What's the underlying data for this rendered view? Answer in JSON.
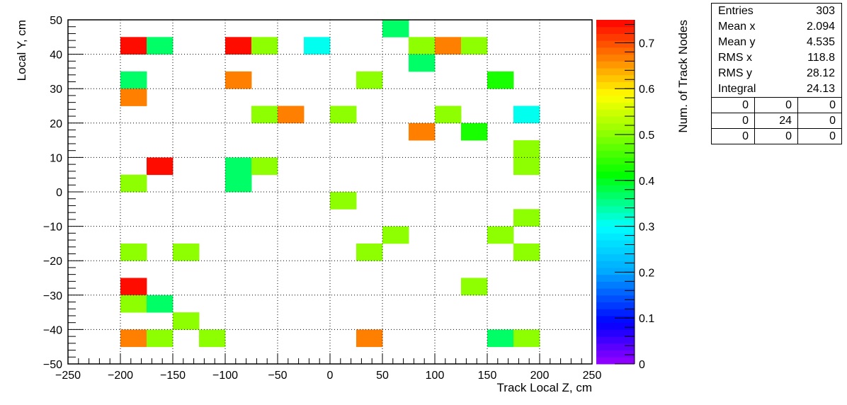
{
  "chart_data": {
    "type": "heatmap",
    "xlabel": "Track Local Z, cm",
    "ylabel": "Local Y, cm",
    "zlabel": "Num. of Track Nodes",
    "xlim": [
      -250,
      250
    ],
    "ylim": [
      -50,
      50
    ],
    "zlim": [
      0,
      0.75
    ],
    "x_bin_width": 25,
    "y_bin_width": 5,
    "x_ticks": [
      -250,
      -200,
      -150,
      -100,
      -50,
      0,
      50,
      100,
      150,
      200,
      250
    ],
    "x_tick_labels": [
      "−250",
      "−200",
      "−150",
      "−100",
      "−50",
      "0",
      "50",
      "100",
      "150",
      "200",
      "250"
    ],
    "y_ticks": [
      -50,
      -40,
      -30,
      -20,
      -10,
      0,
      10,
      20,
      30,
      40,
      50
    ],
    "y_tick_labels": [
      "−50",
      "−40",
      "−30",
      "−20",
      "−10",
      "0",
      "10",
      "20",
      "30",
      "40",
      "50"
    ],
    "z_ticks": [
      0,
      0.1,
      0.2,
      0.3,
      0.4,
      0.5,
      0.6,
      0.7
    ],
    "z_tick_labels": [
      "0",
      "0.1",
      "0.2",
      "0.3",
      "0.4",
      "0.5",
      "0.6",
      "0.7"
    ],
    "grid": true,
    "cells": [
      {
        "x": 50,
        "y": 45,
        "z": 0.36
      },
      {
        "x": -200,
        "y": 40,
        "z": 0.75
      },
      {
        "x": -175,
        "y": 40,
        "z": 0.36
      },
      {
        "x": -100,
        "y": 40,
        "z": 0.75
      },
      {
        "x": -75,
        "y": 40,
        "z": 0.5
      },
      {
        "x": -25,
        "y": 40,
        "z": 0.3
      },
      {
        "x": 75,
        "y": 40,
        "z": 0.5
      },
      {
        "x": 100,
        "y": 40,
        "z": 0.67
      },
      {
        "x": 125,
        "y": 40,
        "z": 0.5
      },
      {
        "x": 75,
        "y": 35,
        "z": 0.36
      },
      {
        "x": -200,
        "y": 30,
        "z": 0.36
      },
      {
        "x": -100,
        "y": 30,
        "z": 0.67
      },
      {
        "x": 25,
        "y": 30,
        "z": 0.5
      },
      {
        "x": 150,
        "y": 30,
        "z": 0.43
      },
      {
        "x": -200,
        "y": 25,
        "z": 0.67
      },
      {
        "x": -75,
        "y": 20,
        "z": 0.5
      },
      {
        "x": -50,
        "y": 20,
        "z": 0.67
      },
      {
        "x": 0,
        "y": 20,
        "z": 0.5
      },
      {
        "x": 100,
        "y": 20,
        "z": 0.5
      },
      {
        "x": 175,
        "y": 20,
        "z": 0.3
      },
      {
        "x": 75,
        "y": 15,
        "z": 0.67
      },
      {
        "x": 125,
        "y": 15,
        "z": 0.43
      },
      {
        "x": 175,
        "y": 10,
        "z": 0.5
      },
      {
        "x": -175,
        "y": 5,
        "z": 0.75
      },
      {
        "x": -100,
        "y": 5,
        "z": 0.36
      },
      {
        "x": -75,
        "y": 5,
        "z": 0.5
      },
      {
        "x": 175,
        "y": 5,
        "z": 0.5
      },
      {
        "x": -200,
        "y": 0,
        "z": 0.5
      },
      {
        "x": -100,
        "y": 0,
        "z": 0.36
      },
      {
        "x": 0,
        "y": -5,
        "z": 0.5
      },
      {
        "x": 175,
        "y": -10,
        "z": 0.5
      },
      {
        "x": 50,
        "y": -15,
        "z": 0.5
      },
      {
        "x": 150,
        "y": -15,
        "z": 0.5
      },
      {
        "x": -200,
        "y": -20,
        "z": 0.5
      },
      {
        "x": -150,
        "y": -20,
        "z": 0.5
      },
      {
        "x": 25,
        "y": -20,
        "z": 0.5
      },
      {
        "x": 175,
        "y": -20,
        "z": 0.5
      },
      {
        "x": -200,
        "y": -30,
        "z": 0.75
      },
      {
        "x": 125,
        "y": -30,
        "z": 0.5
      },
      {
        "x": -200,
        "y": -35,
        "z": 0.5
      },
      {
        "x": -175,
        "y": -35,
        "z": 0.36
      },
      {
        "x": -150,
        "y": -40,
        "z": 0.5
      },
      {
        "x": -200,
        "y": -45,
        "z": 0.67
      },
      {
        "x": -175,
        "y": -45,
        "z": 0.5
      },
      {
        "x": -125,
        "y": -45,
        "z": 0.5
      },
      {
        "x": 25,
        "y": -45,
        "z": 0.67
      },
      {
        "x": 150,
        "y": -45,
        "z": 0.36
      },
      {
        "x": 175,
        "y": -45,
        "z": 0.5
      }
    ]
  },
  "stats": {
    "rows": [
      {
        "label": "Entries",
        "value": "303"
      },
      {
        "label": "Mean x",
        "value": "2.094"
      },
      {
        "label": "Mean y",
        "value": "4.535"
      },
      {
        "label": "RMS x",
        "value": "118.8"
      },
      {
        "label": "RMS y",
        "value": "28.12"
      },
      {
        "label": "Integral",
        "value": "24.13"
      }
    ],
    "grid": [
      "0",
      "0",
      "0",
      "0",
      "24",
      "0",
      "0",
      "0",
      "0"
    ]
  }
}
